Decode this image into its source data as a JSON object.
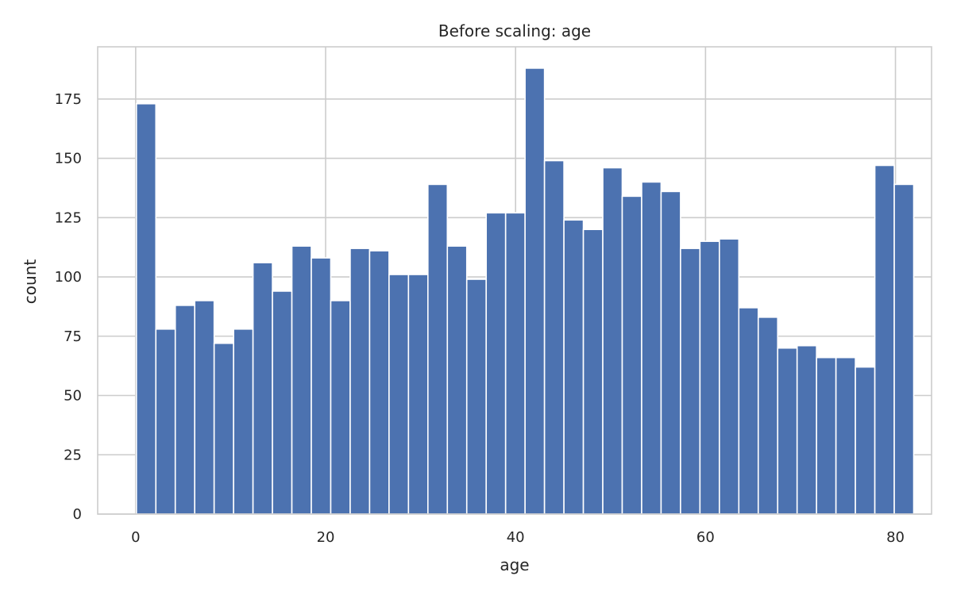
{
  "chart_data": {
    "type": "bar",
    "subtype": "histogram",
    "title": "Before scaling: age",
    "xlabel": "age",
    "ylabel": "count",
    "bin_start": 0.08,
    "bin_width": 2.046,
    "values": [
      173,
      78,
      88,
      90,
      72,
      78,
      106,
      94,
      113,
      108,
      90,
      112,
      111,
      101,
      101,
      139,
      113,
      99,
      127,
      127,
      188,
      149,
      124,
      120,
      146,
      134,
      140,
      136,
      112,
      115,
      116,
      87,
      83,
      70,
      71,
      66,
      66,
      62,
      147,
      139
    ],
    "xlim": [
      -4.0,
      83.8
    ],
    "ylim": [
      0,
      197
    ],
    "xticks": [
      0,
      20,
      40,
      60,
      80
    ],
    "yticks": [
      0,
      25,
      50,
      75,
      100,
      125,
      150,
      175
    ],
    "grid": true,
    "bar_color": "#4c72b0",
    "grid_color": "#cccccc",
    "spine_color": "#cccccc"
  }
}
